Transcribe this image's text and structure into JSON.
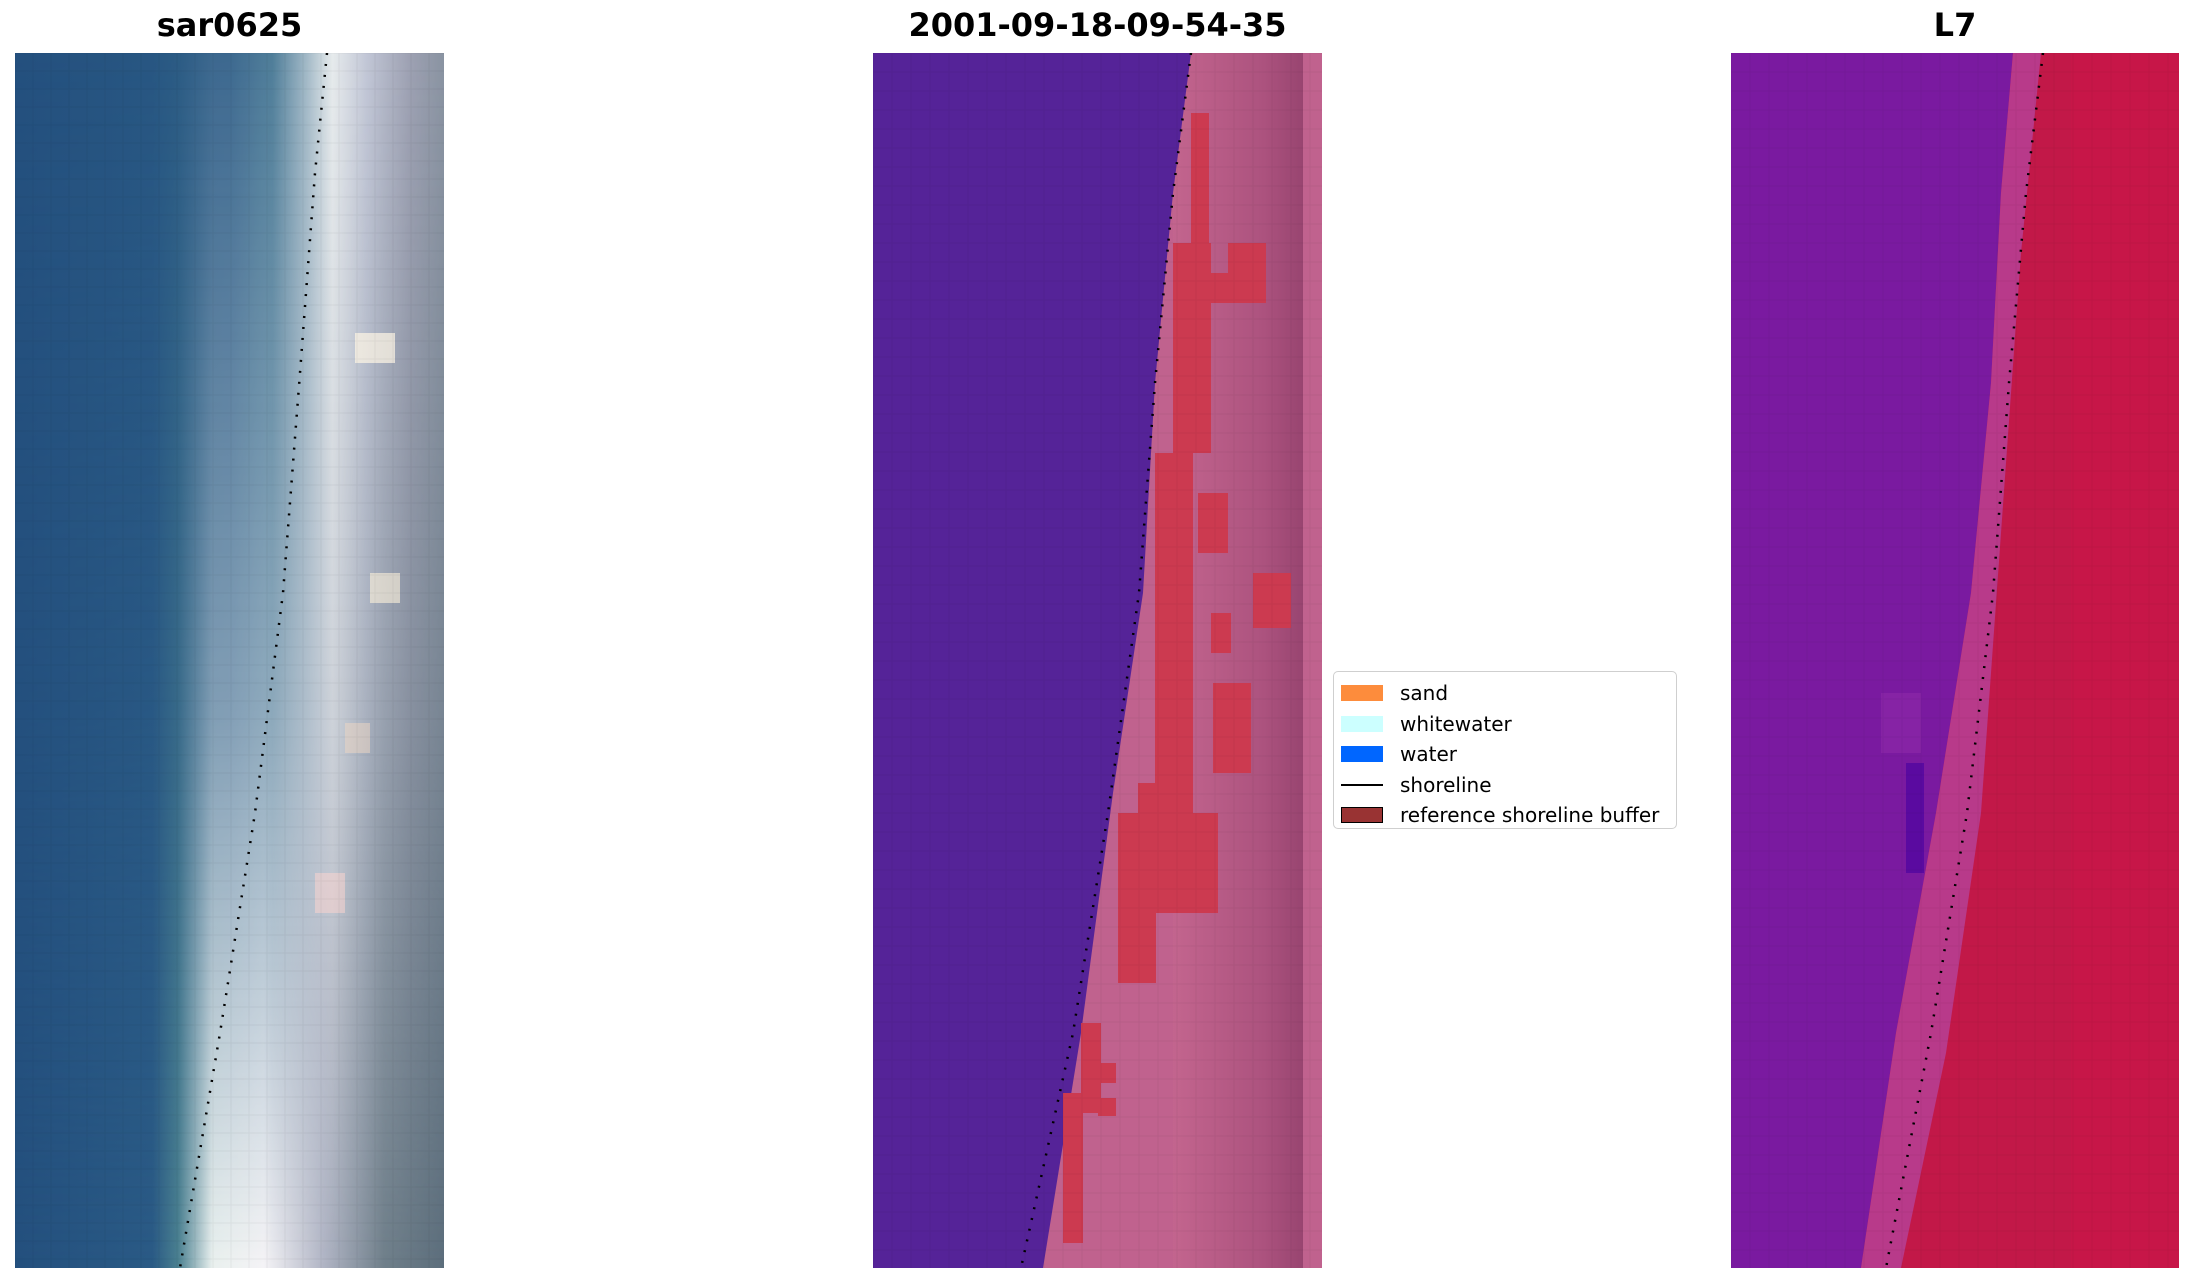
{
  "panels": [
    {
      "title": "sar0625"
    },
    {
      "title": "2001-09-18-09-54-35"
    },
    {
      "title": "L7"
    }
  ],
  "legend": {
    "items": [
      {
        "label": "sand",
        "color": "#fd8c3c",
        "kind": "patch"
      },
      {
        "label": "whitewater",
        "color": "#ccffff",
        "kind": "patch"
      },
      {
        "label": "water",
        "color": "#0066ff",
        "kind": "patch"
      },
      {
        "label": "shoreline",
        "color": "#000000",
        "kind": "line"
      },
      {
        "label": "reference shoreline buffer",
        "color": "#993333",
        "kind": "patch"
      }
    ]
  },
  "colors": {
    "water_rgb": "#275380",
    "sand_rgb": "#c8cde0",
    "class_water": "#552398",
    "class_land": "#c0628e",
    "class_buffer": "#cc3a50",
    "mndwi_water": "#7a1aa0",
    "mndwi_land": "#cc1448"
  }
}
